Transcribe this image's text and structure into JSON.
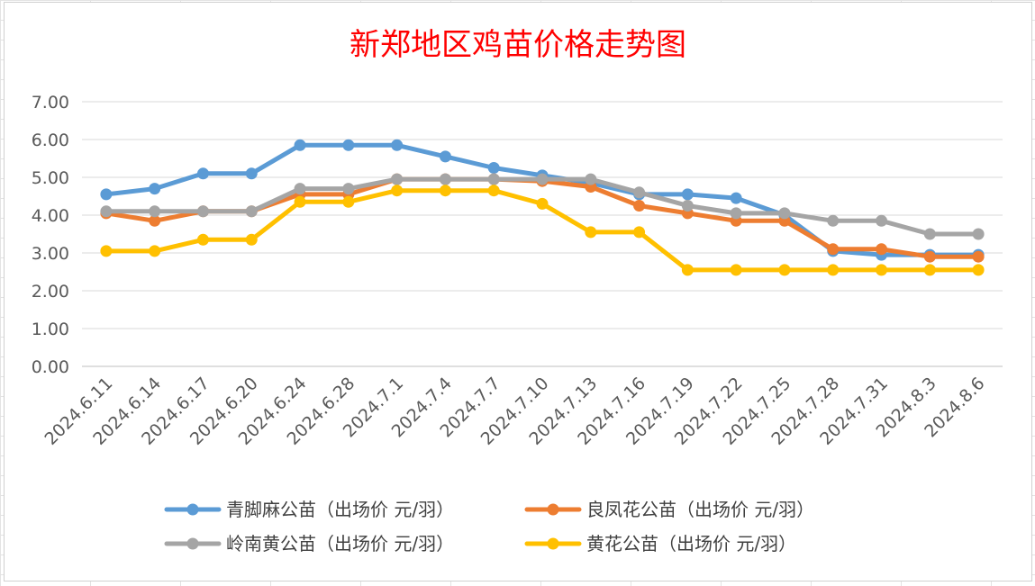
{
  "chart_data": {
    "type": "line",
    "title": "新郑地区鸡苗价格走势图",
    "xlabel": "",
    "ylabel": "",
    "ylim": [
      0,
      7
    ],
    "yticks": [
      "0.00",
      "1.00",
      "2.00",
      "3.00",
      "4.00",
      "5.00",
      "6.00",
      "7.00"
    ],
    "categories": [
      "2024.6.11",
      "2024.6.14",
      "2024.6.17",
      "2024.6.20",
      "2024.6.24",
      "2024.6.28",
      "2024.7.1",
      "2024.7.4",
      "2024.7.7",
      "2024.7.10",
      "2024.7.13",
      "2024.7.16",
      "2024.7.19",
      "2024.7.22",
      "2024.7.25",
      "2024.7.28",
      "2024.7.31",
      "2024.8.3",
      "2024.8.6"
    ],
    "grid": true,
    "legend_position": "bottom",
    "series": [
      {
        "name": "青脚麻公苗（出场价 元/羽）",
        "color": "#5b9bd5",
        "values": [
          4.55,
          4.7,
          5.1,
          5.1,
          5.85,
          5.85,
          5.85,
          5.55,
          5.25,
          5.05,
          4.85,
          4.55,
          4.55,
          4.45,
          4.0,
          3.05,
          2.95,
          2.95,
          2.95
        ]
      },
      {
        "name": "良凤花公苗（出场价 元/羽）",
        "color": "#ed7d31",
        "values": [
          4.05,
          3.85,
          4.1,
          4.1,
          4.55,
          4.55,
          4.95,
          4.95,
          4.95,
          4.9,
          4.75,
          4.25,
          4.05,
          3.85,
          3.85,
          3.1,
          3.1,
          2.9,
          2.9
        ]
      },
      {
        "name": "岭南黄公苗（出场价 元/羽）",
        "color": "#a5a5a5",
        "values": [
          4.1,
          4.1,
          4.1,
          4.1,
          4.7,
          4.7,
          4.95,
          4.95,
          4.95,
          4.95,
          4.95,
          4.6,
          4.25,
          4.05,
          4.05,
          3.85,
          3.85,
          3.5,
          3.5
        ]
      },
      {
        "name": "黄花公苗（出场价 元/羽）",
        "color": "#ffc000",
        "values": [
          3.05,
          3.05,
          3.35,
          3.35,
          4.35,
          4.35,
          4.65,
          4.65,
          4.65,
          4.3,
          3.55,
          3.55,
          2.55,
          2.55,
          2.55,
          2.55,
          2.55,
          2.55,
          2.55
        ]
      }
    ]
  }
}
